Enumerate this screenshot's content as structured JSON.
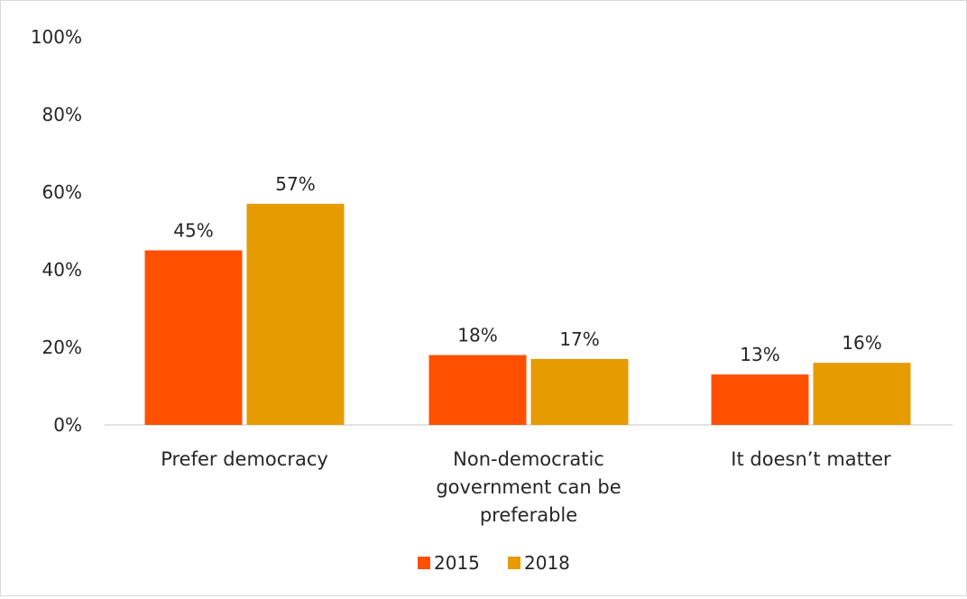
{
  "chart_data": {
    "type": "bar",
    "categories": [
      [
        "Prefer democracy"
      ],
      [
        "Non-democratic",
        "government can be",
        "preferable"
      ],
      [
        "It doesn’t matter"
      ]
    ],
    "series": [
      {
        "name": "2015",
        "color": "#ff5000",
        "values": [
          45,
          18,
          13
        ],
        "labels": [
          "45%",
          "18%",
          "13%"
        ]
      },
      {
        "name": "2018",
        "color": "#e69b00",
        "values": [
          57,
          17,
          16
        ],
        "labels": [
          "57%",
          "17%",
          "16%"
        ]
      }
    ],
    "yticks": [
      "0%",
      "20%",
      "40%",
      "60%",
      "80%",
      "100%"
    ],
    "ylim": [
      0,
      100
    ],
    "legend_position": "bottom",
    "grid": false
  }
}
